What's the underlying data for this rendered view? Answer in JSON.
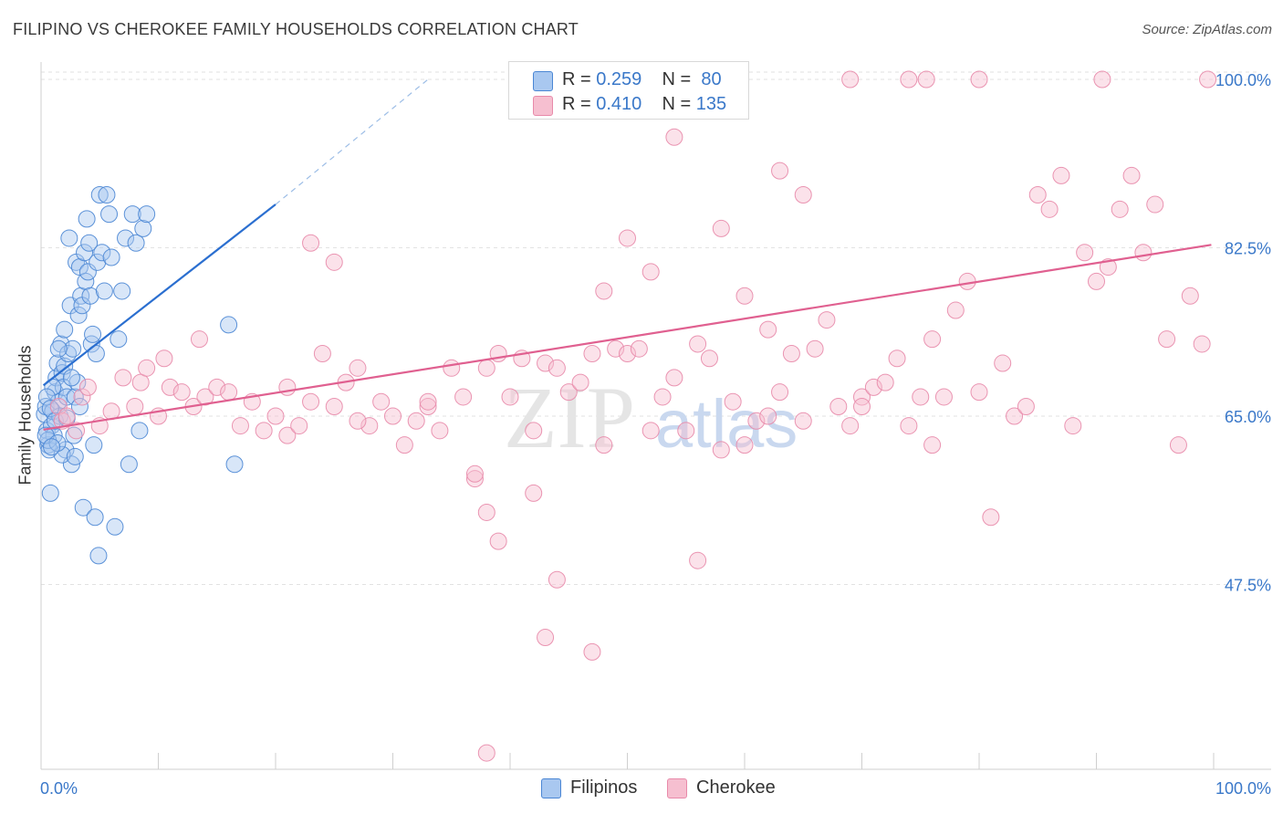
{
  "title": "FILIPINO VS CHEROKEE FAMILY HOUSEHOLDS CORRELATION CHART",
  "source": "Source: ZipAtlas.com",
  "watermark": {
    "zip": "ZIP",
    "atlas": "atlas"
  },
  "colors": {
    "filipino_fill": "#a9c8f0",
    "filipino_stroke": "#4a86d4",
    "filipino_line": "#2b6fd0",
    "cherokee_fill": "#f6bfd0",
    "cherokee_stroke": "#e88aaa",
    "cherokee_line": "#e06090",
    "accent_text": "#3a78c9"
  },
  "legend": {
    "rows": [
      {
        "r_label": "R = ",
        "r_value": "0.259",
        "n_label": "N = ",
        "n_value": "80"
      },
      {
        "r_label": "R = ",
        "r_value": "0.410",
        "n_label": "N = ",
        "n_value": "135"
      }
    ]
  },
  "bottom_legend": {
    "filipinos": "Filipinos",
    "cherokee": "Cherokee"
  },
  "chart_data": {
    "type": "scatter",
    "title": "FILIPINO VS CHEROKEE FAMILY HOUSEHOLDS CORRELATION CHART",
    "xlabel": "",
    "ylabel": "Family Households",
    "xlim": [
      0,
      100
    ],
    "ylim": [
      28.3,
      101.8
    ],
    "x_tick_labels": [
      "0.0%",
      "100.0%"
    ],
    "y_ticks": [
      47.5,
      65.0,
      82.5,
      100.0
    ],
    "y_tick_labels": [
      "47.5%",
      "65.0%",
      "82.5%",
      "100.0%"
    ],
    "grid": true,
    "series": [
      {
        "name": "Filipinos",
        "r": 0.259,
        "n": 80,
        "trend": {
          "x0": 0.2,
          "y0": 68.2,
          "x1": 20.0,
          "y1": 87.0,
          "dash_x1": 33.0,
          "dash_y1": 100.0
        },
        "points": [
          [
            0.3,
            65.2
          ],
          [
            0.4,
            66.0
          ],
          [
            0.5,
            63.5
          ],
          [
            0.6,
            62.0
          ],
          [
            0.7,
            61.5
          ],
          [
            0.8,
            57.0
          ],
          [
            0.9,
            64.0
          ],
          [
            1.0,
            65.5
          ],
          [
            1.1,
            63.0
          ],
          [
            1.2,
            67.5
          ],
          [
            1.3,
            69.0
          ],
          [
            1.4,
            70.5
          ],
          [
            1.5,
            66.5
          ],
          [
            1.6,
            65.0
          ],
          [
            1.7,
            72.5
          ],
          [
            1.8,
            69.5
          ],
          [
            1.9,
            68.0
          ],
          [
            2.0,
            70.2
          ],
          [
            2.1,
            61.5
          ],
          [
            2.2,
            67.0
          ],
          [
            2.3,
            71.5
          ],
          [
            2.4,
            83.5
          ],
          [
            2.5,
            76.5
          ],
          [
            2.6,
            60.0
          ],
          [
            2.7,
            72.0
          ],
          [
            2.8,
            63.0
          ],
          [
            2.9,
            67.0
          ],
          [
            3.0,
            81.0
          ],
          [
            3.1,
            68.5
          ],
          [
            3.2,
            75.5
          ],
          [
            3.3,
            80.5
          ],
          [
            3.4,
            77.5
          ],
          [
            3.5,
            76.5
          ],
          [
            3.6,
            55.5
          ],
          [
            3.7,
            82.0
          ],
          [
            3.8,
            79.0
          ],
          [
            3.9,
            85.5
          ],
          [
            4.0,
            80.0
          ],
          [
            4.1,
            83.0
          ],
          [
            4.2,
            77.5
          ],
          [
            4.3,
            72.5
          ],
          [
            4.4,
            73.5
          ],
          [
            4.5,
            62.0
          ],
          [
            4.6,
            54.5
          ],
          [
            4.7,
            71.5
          ],
          [
            4.8,
            81.0
          ],
          [
            4.9,
            50.5
          ],
          [
            5.0,
            88.0
          ],
          [
            5.2,
            82.0
          ],
          [
            5.4,
            78.0
          ],
          [
            5.6,
            88.0
          ],
          [
            5.8,
            86.0
          ],
          [
            6.0,
            81.5
          ],
          [
            6.3,
            53.5
          ],
          [
            6.6,
            73.0
          ],
          [
            6.9,
            78.0
          ],
          [
            7.2,
            83.5
          ],
          [
            7.5,
            60.0
          ],
          [
            7.8,
            86.0
          ],
          [
            8.1,
            83.0
          ],
          [
            8.4,
            63.5
          ],
          [
            8.7,
            84.5
          ],
          [
            9.0,
            86.0
          ],
          [
            1.0,
            68.0
          ],
          [
            1.5,
            72.0
          ],
          [
            2.0,
            74.0
          ],
          [
            0.5,
            67.0
          ],
          [
            0.8,
            65.8
          ],
          [
            1.2,
            64.5
          ],
          [
            2.6,
            69.0
          ],
          [
            3.3,
            66.0
          ],
          [
            16.0,
            74.5
          ],
          [
            16.5,
            60.0
          ],
          [
            0.6,
            62.5
          ],
          [
            1.8,
            61.0
          ],
          [
            2.2,
            64.8
          ],
          [
            0.4,
            63.0
          ],
          [
            1.4,
            62.2
          ],
          [
            0.9,
            61.8
          ],
          [
            2.9,
            60.8
          ]
        ]
      },
      {
        "name": "Cherokee",
        "r": 0.41,
        "n": 135,
        "trend": {
          "x0": 0.2,
          "y0": 63.6,
          "x1": 99.8,
          "y1": 82.8
        },
        "points": [
          [
            1.5,
            66.0
          ],
          [
            1.8,
            64.5
          ],
          [
            2.2,
            65.0
          ],
          [
            3.0,
            63.5
          ],
          [
            3.5,
            67.0
          ],
          [
            4.0,
            68.0
          ],
          [
            5.0,
            64.0
          ],
          [
            6.0,
            65.5
          ],
          [
            7.0,
            69.0
          ],
          [
            8.0,
            66.0
          ],
          [
            8.5,
            68.5
          ],
          [
            9.0,
            70.0
          ],
          [
            10.0,
            65.0
          ],
          [
            11.0,
            68.0
          ],
          [
            12.0,
            67.5
          ],
          [
            13.0,
            66.0
          ],
          [
            14.0,
            67.0
          ],
          [
            15.0,
            68.0
          ],
          [
            16.0,
            67.5
          ],
          [
            17.0,
            64.0
          ],
          [
            18.0,
            66.5
          ],
          [
            19.0,
            63.5
          ],
          [
            20.0,
            65.0
          ],
          [
            21.0,
            63.0
          ],
          [
            22.0,
            64.0
          ],
          [
            23.0,
            66.5
          ],
          [
            24.0,
            71.5
          ],
          [
            25.0,
            66.0
          ],
          [
            26.0,
            68.5
          ],
          [
            27.0,
            70.0
          ],
          [
            28.0,
            64.0
          ],
          [
            29.0,
            66.5
          ],
          [
            30.0,
            65.0
          ],
          [
            31.0,
            62.0
          ],
          [
            32.0,
            64.5
          ],
          [
            33.0,
            66.0
          ],
          [
            34.0,
            63.5
          ],
          [
            35.0,
            70.0
          ],
          [
            36.0,
            67.0
          ],
          [
            37.0,
            58.5
          ],
          [
            38.0,
            70.0
          ],
          [
            39.0,
            71.5
          ],
          [
            40.0,
            67.0
          ],
          [
            41.0,
            71.0
          ],
          [
            42.0,
            63.5
          ],
          [
            43.0,
            70.5
          ],
          [
            44.0,
            70.0
          ],
          [
            45.0,
            67.5
          ],
          [
            46.0,
            68.5
          ],
          [
            47.0,
            71.5
          ],
          [
            48.0,
            62.0
          ],
          [
            49.0,
            72.0
          ],
          [
            50.0,
            71.5
          ],
          [
            51.0,
            72.0
          ],
          [
            52.0,
            63.5
          ],
          [
            53.0,
            67.0
          ],
          [
            54.0,
            69.0
          ],
          [
            55.0,
            63.5
          ],
          [
            56.0,
            72.5
          ],
          [
            57.0,
            71.0
          ],
          [
            58.0,
            61.5
          ],
          [
            59.0,
            66.5
          ],
          [
            60.0,
            62.0
          ],
          [
            61.0,
            64.5
          ],
          [
            62.0,
            74.0
          ],
          [
            63.0,
            67.5
          ],
          [
            64.0,
            71.5
          ],
          [
            65.0,
            64.5
          ],
          [
            66.0,
            72.0
          ],
          [
            67.0,
            75.0
          ],
          [
            68.0,
            66.0
          ],
          [
            69.0,
            64.0
          ],
          [
            70.0,
            67.0
          ],
          [
            71.0,
            68.0
          ],
          [
            72.0,
            68.5
          ],
          [
            73.0,
            71.0
          ],
          [
            74.0,
            64.0
          ],
          [
            75.0,
            67.0
          ],
          [
            76.0,
            73.0
          ],
          [
            77.0,
            67.0
          ],
          [
            78.0,
            76.0
          ],
          [
            79.0,
            79.0
          ],
          [
            80.0,
            67.5
          ],
          [
            81.0,
            54.5
          ],
          [
            82.0,
            70.5
          ],
          [
            83.0,
            65.0
          ],
          [
            84.0,
            66.0
          ],
          [
            85.0,
            88.0
          ],
          [
            86.0,
            86.5
          ],
          [
            87.0,
            90.0
          ],
          [
            88.0,
            64.0
          ],
          [
            89.0,
            82.0
          ],
          [
            90.0,
            79.0
          ],
          [
            91.0,
            80.5
          ],
          [
            92.0,
            86.5
          ],
          [
            93.0,
            90.0
          ],
          [
            94.0,
            82.0
          ],
          [
            95.0,
            87.0
          ],
          [
            96.0,
            73.0
          ],
          [
            97.0,
            62.0
          ],
          [
            98.0,
            77.5
          ],
          [
            99.0,
            72.5
          ],
          [
            99.5,
            100.0
          ],
          [
            74.0,
            100.0
          ],
          [
            69.0,
            100.0
          ],
          [
            90.5,
            100.0
          ],
          [
            75.5,
            100.0
          ],
          [
            80.0,
            100.0
          ],
          [
            54.0,
            94.0
          ],
          [
            58.0,
            84.5
          ],
          [
            62.0,
            65.0
          ],
          [
            23.0,
            83.0
          ],
          [
            25.0,
            81.0
          ],
          [
            37.0,
            59.0
          ],
          [
            38.0,
            55.0
          ],
          [
            39.0,
            52.0
          ],
          [
            44.0,
            48.0
          ],
          [
            56.0,
            50.0
          ],
          [
            38.0,
            30.0
          ],
          [
            43.0,
            42.0
          ],
          [
            47.0,
            40.5
          ],
          [
            42.0,
            57.0
          ],
          [
            52.0,
            80.0
          ],
          [
            48.0,
            78.0
          ],
          [
            50.0,
            83.5
          ],
          [
            60.0,
            77.5
          ],
          [
            63.0,
            90.5
          ],
          [
            65.0,
            88.0
          ],
          [
            70.0,
            66.0
          ],
          [
            76.0,
            62.0
          ],
          [
            33.0,
            66.5
          ],
          [
            27.0,
            64.5
          ],
          [
            21.0,
            68.0
          ],
          [
            13.5,
            73.0
          ],
          [
            10.5,
            71.0
          ]
        ]
      }
    ]
  }
}
